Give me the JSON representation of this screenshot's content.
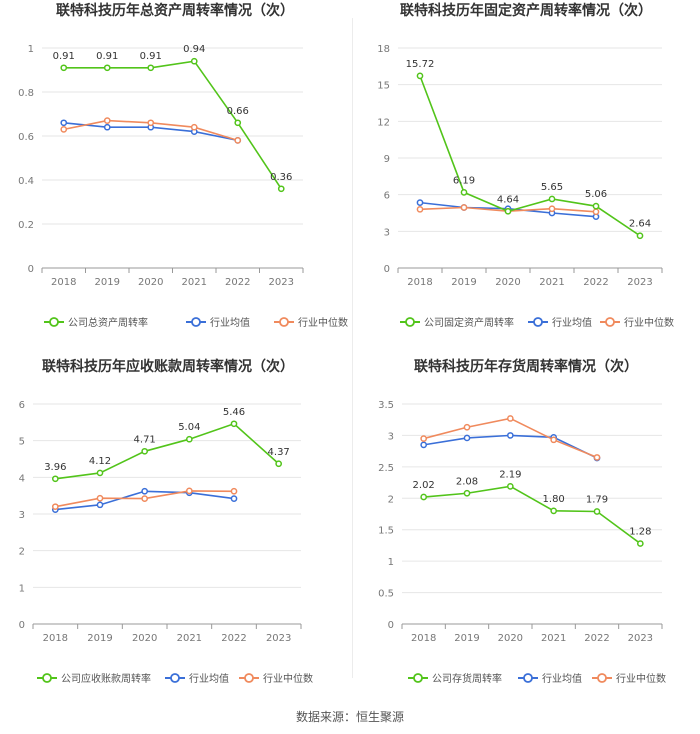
{
  "source": "数据来源：恒生聚源",
  "colors": {
    "company": "#52c41a",
    "industry_avg": "#3a6fd8",
    "industry_median": "#f08a5d",
    "grid": "#e6e6e6",
    "axis": "#999999"
  },
  "chart_data": [
    {
      "type": "line",
      "title": "联特科技历年总资产周转率情况（次）",
      "categories": [
        "2018",
        "2019",
        "2020",
        "2021",
        "2022",
        "2023"
      ],
      "ylim": [
        0,
        1
      ],
      "yticks": [
        "0",
        "0.2",
        "0.4",
        "0.6",
        "0.8",
        "1"
      ],
      "ytick_values": [
        0,
        0.2,
        0.4,
        0.6,
        0.8,
        1
      ],
      "series": [
        {
          "name": "公司总资产周转率",
          "values": [
            0.91,
            0.91,
            0.91,
            0.94,
            0.66,
            0.36
          ],
          "labels": [
            "0.91",
            "0.91",
            "0.91",
            "0.94",
            "0.66",
            "0.36"
          ]
        },
        {
          "name": "行业均值",
          "values": [
            0.66,
            0.64,
            0.64,
            0.62,
            0.58,
            null
          ]
        },
        {
          "name": "行业中位数",
          "values": [
            0.63,
            0.67,
            0.66,
            0.64,
            0.58,
            null
          ]
        }
      ]
    },
    {
      "type": "line",
      "title": "联特科技历年固定资产周转率情况（次）",
      "categories": [
        "2018",
        "2019",
        "2020",
        "2021",
        "2022",
        "2023"
      ],
      "ylim": [
        0,
        18
      ],
      "yticks": [
        "0",
        "3",
        "6",
        "9",
        "12",
        "15",
        "18"
      ],
      "ytick_values": [
        0,
        3,
        6,
        9,
        12,
        15,
        18
      ],
      "series": [
        {
          "name": "公司固定资产周转率",
          "values": [
            15.72,
            6.19,
            4.64,
            5.65,
            5.06,
            2.64
          ],
          "labels": [
            "15.72",
            "6.19",
            "4.64",
            "5.65",
            "5.06",
            "2.64"
          ]
        },
        {
          "name": "行业均值",
          "values": [
            5.35,
            4.95,
            4.85,
            4.5,
            4.2,
            null
          ]
        },
        {
          "name": "行业中位数",
          "values": [
            4.8,
            4.95,
            4.65,
            4.85,
            4.6,
            null
          ]
        }
      ]
    },
    {
      "type": "line",
      "title": "联特科技历年应收账款周转率情况（次）",
      "categories": [
        "2018",
        "2019",
        "2020",
        "2021",
        "2022",
        "2023"
      ],
      "ylim": [
        0,
        6
      ],
      "yticks": [
        "0",
        "1",
        "2",
        "3",
        "4",
        "5",
        "6"
      ],
      "ytick_values": [
        0,
        1,
        2,
        3,
        4,
        5,
        6
      ],
      "series": [
        {
          "name": "公司应收账款周转率",
          "values": [
            3.96,
            4.12,
            4.71,
            5.04,
            5.46,
            4.37
          ],
          "labels": [
            "3.96",
            "4.12",
            "4.71",
            "5.04",
            "5.46",
            "4.37"
          ]
        },
        {
          "name": "行业均值",
          "values": [
            3.12,
            3.25,
            3.62,
            3.58,
            3.42,
            null
          ]
        },
        {
          "name": "行业中位数",
          "values": [
            3.2,
            3.43,
            3.42,
            3.63,
            3.62,
            null
          ]
        }
      ]
    },
    {
      "type": "line",
      "title": "联特科技历年存货周转率情况（次）",
      "categories": [
        "2018",
        "2019",
        "2020",
        "2021",
        "2022",
        "2023"
      ],
      "ylim": [
        0,
        3.5
      ],
      "yticks": [
        "0",
        "0.5",
        "1",
        "1.5",
        "2",
        "2.5",
        "3",
        "3.5"
      ],
      "ytick_values": [
        0,
        0.5,
        1,
        1.5,
        2,
        2.5,
        3,
        3.5
      ],
      "series": [
        {
          "name": "公司存货周转率",
          "values": [
            2.02,
            2.08,
            2.19,
            1.8,
            1.79,
            1.28
          ],
          "labels": [
            "2.02",
            "2.08",
            "2.19",
            "1.80",
            "1.79",
            "1.28"
          ]
        },
        {
          "name": "行业均值",
          "values": [
            2.85,
            2.96,
            3.0,
            2.97,
            2.64,
            null
          ]
        },
        {
          "name": "行业中位数",
          "values": [
            2.95,
            3.13,
            3.27,
            2.93,
            2.65,
            null
          ]
        }
      ]
    }
  ]
}
